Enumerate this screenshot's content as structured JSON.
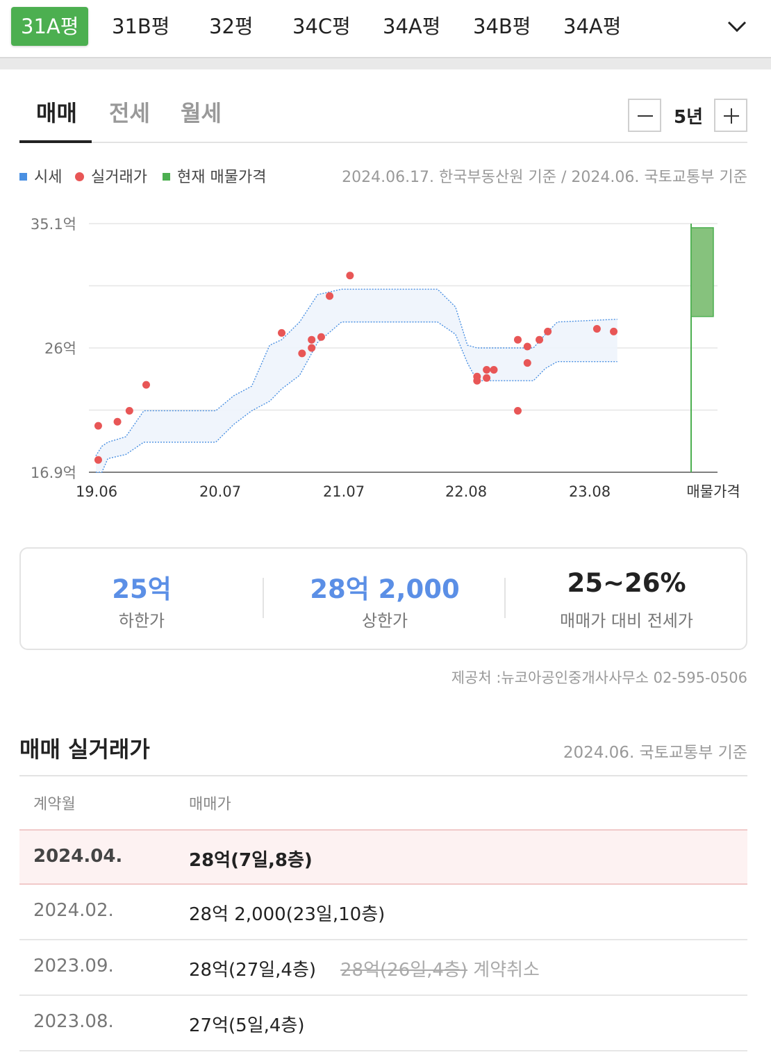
{
  "size_tabs": [
    "31A평",
    "31B평",
    "32평",
    "34C평",
    "34A평",
    "34B평",
    "34A평"
  ],
  "active_size_index": 0,
  "deal_tabs": [
    "매매",
    "전세",
    "월세"
  ],
  "active_deal_index": 0,
  "period": {
    "value": "5년",
    "minus_icon": "minus-icon",
    "plus_icon": "plus-icon"
  },
  "legend": {
    "items": [
      {
        "label": "시세",
        "color": "#4a90e2"
      },
      {
        "label": "실거래가",
        "color": "#e85656"
      },
      {
        "label": "현재 매물가격",
        "color": "#4caf50"
      }
    ],
    "basis": "2024.06.17. 한국부동산원 기준 / 2024.06. 국토교통부 기준"
  },
  "chart_data": {
    "type": "scatter",
    "y_labels": [
      "35.1억",
      "26억",
      "16.9억"
    ],
    "ylim": [
      16.9,
      35.1
    ],
    "x_labels": [
      "19.06",
      "20.07",
      "21.07",
      "22.08",
      "23.08",
      "매물가격"
    ],
    "xlim": [
      2019.5,
      2024.46
    ],
    "band": [
      {
        "x": 2019.5,
        "low": 16.9,
        "high": 18.1
      },
      {
        "x": 2019.55,
        "low": 16.9,
        "high": 18.8
      },
      {
        "x": 2019.6,
        "low": 17.9,
        "high": 19.1
      },
      {
        "x": 2019.75,
        "low": 18.2,
        "high": 19.5
      },
      {
        "x": 2019.9,
        "low": 19.1,
        "high": 21.4
      },
      {
        "x": 2020.5,
        "low": 19.1,
        "high": 21.4
      },
      {
        "x": 2020.65,
        "low": 20.4,
        "high": 22.5
      },
      {
        "x": 2020.8,
        "low": 21.4,
        "high": 23.2
      },
      {
        "x": 2020.95,
        "low": 22.1,
        "high": 26.2
      },
      {
        "x": 2021.05,
        "low": 23.0,
        "high": 26.6
      },
      {
        "x": 2021.2,
        "low": 24.0,
        "high": 27.9
      },
      {
        "x": 2021.35,
        "low": 26.4,
        "high": 29.9
      },
      {
        "x": 2021.55,
        "low": 27.9,
        "high": 30.3
      },
      {
        "x": 2022.35,
        "low": 27.9,
        "high": 30.3
      },
      {
        "x": 2022.5,
        "low": 27.0,
        "high": 29.0
      },
      {
        "x": 2022.6,
        "low": 24.9,
        "high": 26.2
      },
      {
        "x": 2022.68,
        "low": 23.6,
        "high": 26.0
      },
      {
        "x": 2023.15,
        "low": 23.6,
        "high": 26.0
      },
      {
        "x": 2023.25,
        "low": 24.5,
        "high": 27.0
      },
      {
        "x": 2023.35,
        "low": 25.0,
        "high": 27.9
      },
      {
        "x": 2023.85,
        "low": 25.0,
        "high": 28.1
      }
    ],
    "trades": [
      {
        "x": 2019.52,
        "y": 20.3
      },
      {
        "x": 2019.52,
        "y": 17.8
      },
      {
        "x": 2019.68,
        "y": 20.6
      },
      {
        "x": 2019.78,
        "y": 21.4
      },
      {
        "x": 2019.92,
        "y": 23.3
      },
      {
        "x": 2021.05,
        "y": 27.1
      },
      {
        "x": 2021.22,
        "y": 25.6
      },
      {
        "x": 2021.3,
        "y": 26.0
      },
      {
        "x": 2021.3,
        "y": 26.6
      },
      {
        "x": 2021.38,
        "y": 26.8
      },
      {
        "x": 2021.45,
        "y": 29.8
      },
      {
        "x": 2021.62,
        "y": 31.3
      },
      {
        "x": 2022.68,
        "y": 23.6
      },
      {
        "x": 2022.68,
        "y": 23.9
      },
      {
        "x": 2022.76,
        "y": 23.8
      },
      {
        "x": 2022.76,
        "y": 24.4
      },
      {
        "x": 2022.82,
        "y": 24.4
      },
      {
        "x": 2023.02,
        "y": 21.4
      },
      {
        "x": 2023.02,
        "y": 26.6
      },
      {
        "x": 2023.1,
        "y": 26.1
      },
      {
        "x": 2023.1,
        "y": 24.9
      },
      {
        "x": 2023.2,
        "y": 26.6
      },
      {
        "x": 2023.27,
        "y": 27.2
      },
      {
        "x": 2023.68,
        "y": 27.4
      },
      {
        "x": 2023.82,
        "y": 27.2
      }
    ],
    "listing": {
      "low": 28.3,
      "high": 34.8
    }
  },
  "summary": [
    {
      "value": "25억",
      "label": "하한가",
      "accent": true
    },
    {
      "value": "28억 2,000",
      "label": "상한가",
      "accent": true
    },
    {
      "value": "25~26%",
      "label": "매매가 대비 전세가",
      "accent": false
    }
  ],
  "provider": "제공처 :뉴코아공인중개사사무소 02-595-0506",
  "transactions": {
    "title": "매매 실거래가",
    "basis": "2024.06. 국토교통부 기준",
    "headers": [
      "계약월",
      "매매가"
    ],
    "rows": [
      {
        "date": "2024.04.",
        "price": "28억(7일,8층)",
        "highlight": true
      },
      {
        "date": "2024.02.",
        "price": "28억 2,000(23일,10층)"
      },
      {
        "date": "2023.09.",
        "price": "28억(27일,4층)",
        "cancelled": "28억(26일,4층)",
        "cancel_label": "계약취소"
      },
      {
        "date": "2023.08.",
        "price": "27억(5일,4층)"
      }
    ]
  }
}
